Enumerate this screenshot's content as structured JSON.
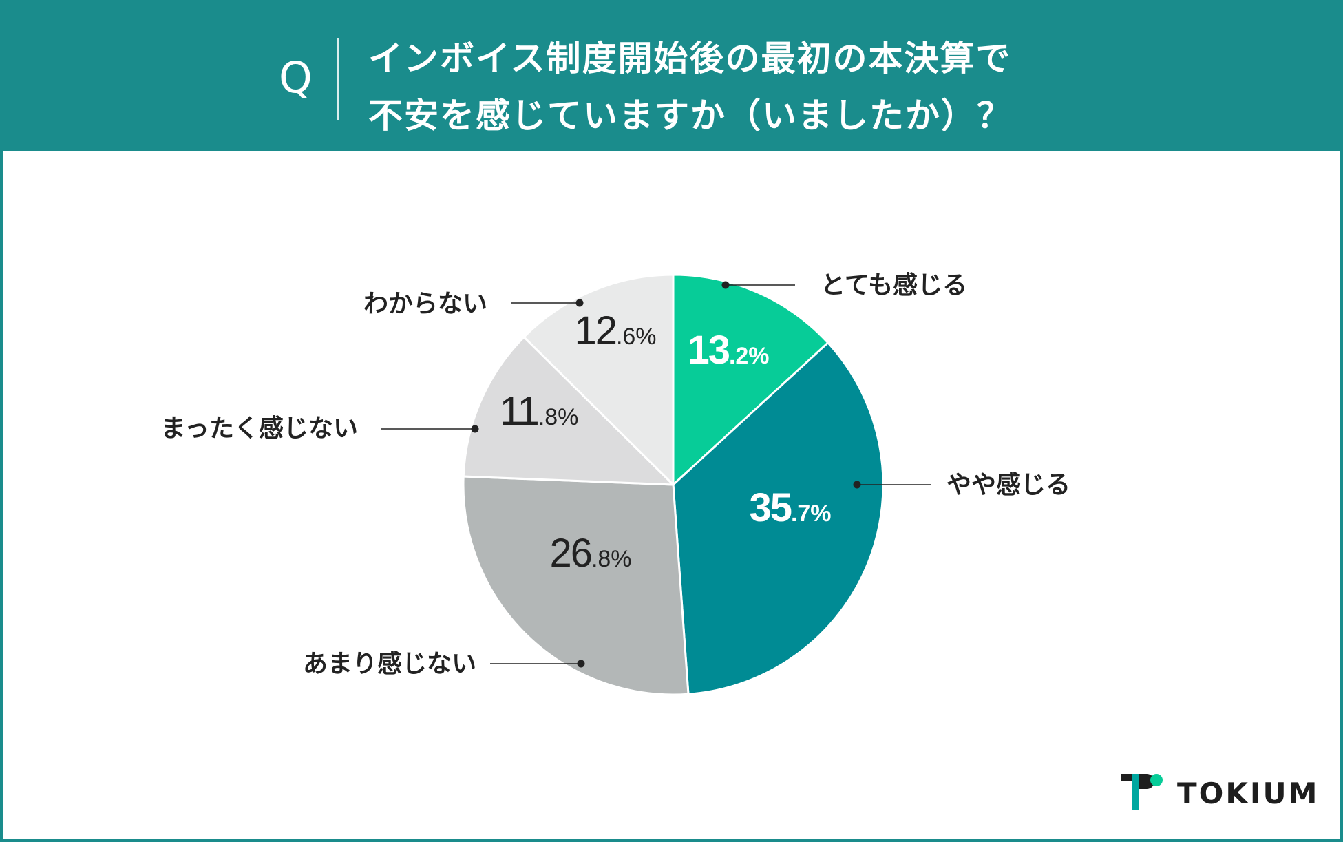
{
  "header": {
    "q_label": "Q",
    "title_line1": "インボイス制度開始後の最初の本決算で",
    "title_line2": "不安を感じていますか（いましたか）？"
  },
  "colors": {
    "header_bg": "#1a8c8c",
    "label_text": "#222222"
  },
  "chart_data": {
    "type": "pie",
    "title": "インボイス制度開始後の最初の本決算で不安を感じていますか（いましたか）？",
    "unit": "%",
    "slices": [
      {
        "label": "とても感じる",
        "value": 13.2,
        "int": "13",
        "dec": ".2%",
        "color": "#07cc98",
        "text_color": "#ffffff"
      },
      {
        "label": "やや感じる",
        "value": 35.7,
        "int": "35",
        "dec": ".7%",
        "color": "#008b94",
        "text_color": "#ffffff"
      },
      {
        "label": "あまり感じない",
        "value": 26.8,
        "int": "26",
        "dec": ".8%",
        "color": "#b3b7b7",
        "text_color": "#222222"
      },
      {
        "label": "まったく感じない",
        "value": 11.8,
        "int": "11",
        "dec": ".8%",
        "color": "#dcdcdd",
        "text_color": "#222222"
      },
      {
        "label": "わからない",
        "value": 12.6,
        "int": "12",
        "dec": ".6%",
        "color": "#e9eaea",
        "text_color": "#222222"
      }
    ]
  },
  "logo": {
    "text": "TOKIUM"
  }
}
